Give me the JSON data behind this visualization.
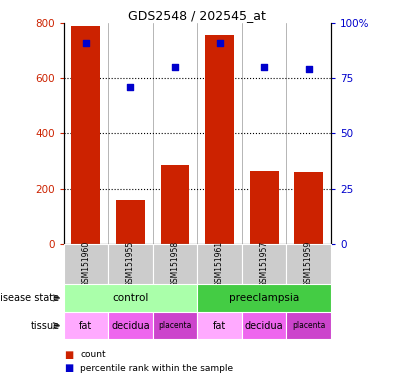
{
  "title": "GDS2548 / 202545_at",
  "samples": [
    "GSM151960",
    "GSM151955",
    "GSM151958",
    "GSM151961",
    "GSM151957",
    "GSM151959"
  ],
  "counts": [
    790,
    160,
    285,
    755,
    265,
    260
  ],
  "percentile_ranks": [
    91,
    71,
    80,
    91,
    80,
    79
  ],
  "left_ylim": [
    0,
    800
  ],
  "right_ylim": [
    0,
    100
  ],
  "left_yticks": [
    0,
    200,
    400,
    600,
    800
  ],
  "right_yticks": [
    0,
    25,
    50,
    75,
    100
  ],
  "right_yticklabels": [
    "0",
    "25",
    "50",
    "75",
    "100%"
  ],
  "bar_color": "#cc2200",
  "dot_color": "#0000cc",
  "disease_state_labels": [
    "control",
    "preeclampsia"
  ],
  "disease_state_color_control": "#aaffaa",
  "disease_state_color_preeclampsia": "#44cc44",
  "tissue_labels": [
    "fat",
    "decidua",
    "placenta",
    "fat",
    "decidua",
    "placenta"
  ],
  "tissue_color_fat": "#ffaaff",
  "tissue_color_decidua": "#ee66ee",
  "tissue_color_placenta": "#cc44cc",
  "legend_count_label": "count",
  "legend_percentile_label": "percentile rank within the sample",
  "disease_state_row_label": "disease state",
  "tissue_row_label": "tissue"
}
